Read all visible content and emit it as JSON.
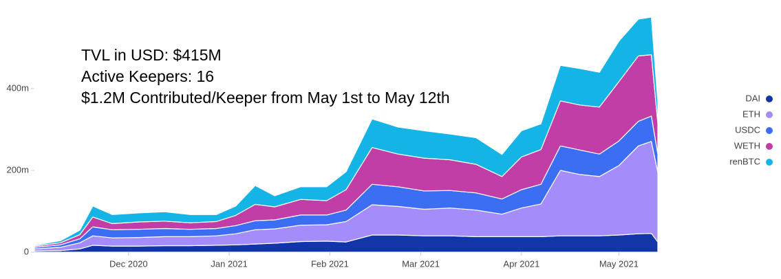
{
  "chart_data": {
    "type": "stacked_area",
    "annotations": [
      "TVL in USD: $415M",
      "Active Keepers: 16",
      "$1.2M Contributed/Keeper from May 1st to May 12th"
    ],
    "x": [
      0,
      8,
      14,
      18,
      24,
      32,
      40,
      48,
      56,
      62,
      68,
      74,
      82,
      90,
      96,
      104,
      112,
      120,
      128,
      136,
      144,
      150,
      156,
      162,
      168,
      174,
      180,
      186,
      190,
      192
    ],
    "xlim": [
      0,
      192
    ],
    "xticks": [
      {
        "value": 29,
        "label": "Dec 2020"
      },
      {
        "value": 60,
        "label": "Jan 2021"
      },
      {
        "value": 91,
        "label": "Feb 2021"
      },
      {
        "value": 119,
        "label": "Mar 2021"
      },
      {
        "value": 150,
        "label": "Apr 2021"
      },
      {
        "value": 180,
        "label": "May 2021"
      }
    ],
    "ylim": [
      0,
      600
    ],
    "yticks": [
      0,
      {
        "value": 200,
        "label": "200m"
      },
      {
        "value": 400,
        "label": "400m"
      }
    ],
    "grid": false,
    "legend": "right",
    "series": [
      {
        "name": "DAI",
        "color": "#1236a8",
        "values": [
          3,
          4,
          8,
          17,
          15,
          15,
          16,
          16,
          17,
          18,
          20,
          22,
          26,
          27,
          25,
          42,
          42,
          40,
          40,
          38,
          38,
          38,
          38,
          40,
          40,
          40,
          42,
          45,
          46,
          25
        ]
      },
      {
        "name": "ETH",
        "color": "#a48cfb",
        "values": [
          5,
          8,
          15,
          23,
          20,
          21,
          22,
          22,
          23,
          27,
          35,
          35,
          40,
          40,
          50,
          74,
          70,
          65,
          68,
          65,
          55,
          70,
          80,
          160,
          150,
          145,
          170,
          215,
          225,
          170
        ]
      },
      {
        "name": "USDC",
        "color": "#3b6ef2",
        "values": [
          4,
          6,
          10,
          22,
          20,
          20,
          20,
          18,
          18,
          20,
          22,
          22,
          25,
          24,
          28,
          50,
          48,
          45,
          43,
          42,
          37,
          45,
          48,
          60,
          60,
          55,
          60,
          60,
          62,
          45
        ]
      },
      {
        "name": "WETH",
        "color": "#c13ea7",
        "values": [
          3,
          5,
          10,
          24,
          15,
          18,
          18,
          16,
          17,
          25,
          40,
          32,
          38,
          35,
          50,
          90,
          80,
          80,
          75,
          70,
          55,
          80,
          85,
          110,
          110,
          115,
          145,
          160,
          150,
          75
        ]
      },
      {
        "name": "renBTC",
        "color": "#14b5e6",
        "values": [
          2,
          5,
          11,
          27,
          22,
          22,
          23,
          20,
          17,
          23,
          46,
          27,
          31,
          34,
          44,
          70,
          66,
          67,
          63,
          65,
          54,
          64,
          63,
          87,
          89,
          85,
          99,
          90,
          92,
          50
        ]
      }
    ]
  }
}
